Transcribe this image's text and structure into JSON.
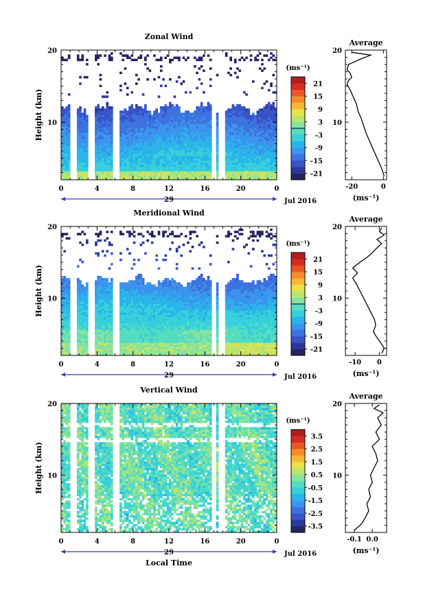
{
  "figure": {
    "xlabel": "Local Time",
    "day_label": "29",
    "month_label": "Jul 2016",
    "unit_label": "(ms⁻¹)",
    "average_title": "Average",
    "height_label": "Height (km)"
  },
  "chart_data": [
    {
      "type": "heatmap",
      "title": "Zonal Wind",
      "ylabel": "Height (km)",
      "xlabel": "",
      "x_ticks": [
        "0",
        "4",
        "8",
        "12",
        "16",
        "20",
        "0"
      ],
      "x_range": [
        0,
        24
      ],
      "y_ticks": [
        "20",
        "10"
      ],
      "y_range": [
        2,
        20
      ],
      "colorbar_ticks": [
        "21",
        "15",
        "9",
        "3",
        "-3",
        "-9",
        "-15",
        "-21"
      ],
      "colorbar_range": [
        -24,
        24
      ],
      "data_gaps_hours": [
        [
          1.0,
          1.6
        ],
        [
          3.2,
          3.7
        ],
        [
          5.8,
          6.3
        ],
        [
          16.8,
          17.2
        ],
        [
          17.7,
          18.1
        ]
      ],
      "data_top_km": 11.8,
      "profile": {
        "title": "Average",
        "x_ticks": [
          "-20",
          "0"
        ],
        "x_range": [
          -24,
          2
        ],
        "xlabel": "(ms⁻¹)",
        "y_ticks": [
          "20",
          "10"
        ],
        "points": [
          [
            0.5,
            2.5
          ],
          [
            -1,
            3.5
          ],
          [
            -3,
            4.5
          ],
          [
            -5,
            5.5
          ],
          [
            -7,
            6.5
          ],
          [
            -9,
            7.5
          ],
          [
            -11,
            8.5
          ],
          [
            -12.5,
            9.5
          ],
          [
            -14,
            10.5
          ],
          [
            -16,
            11.5
          ],
          [
            -17,
            12.5
          ],
          [
            -19,
            13.5
          ],
          [
            -21,
            14.5
          ],
          [
            -23,
            15.2
          ],
          [
            -22,
            15.8
          ],
          [
            -20,
            16.2
          ],
          [
            -21,
            16.8
          ],
          [
            -23,
            17.3
          ],
          [
            -22,
            18
          ],
          [
            -14,
            18.8
          ],
          [
            -8,
            19.3
          ],
          [
            -20,
            19.7
          ]
        ]
      }
    },
    {
      "type": "heatmap",
      "title": "Meridional Wind",
      "ylabel": "Height (km)",
      "xlabel": "",
      "x_ticks": [
        "0",
        "4",
        "8",
        "12",
        "16",
        "20",
        "0"
      ],
      "x_range": [
        0,
        24
      ],
      "y_ticks": [
        "20",
        "10"
      ],
      "y_range": [
        2,
        20
      ],
      "colorbar_ticks": [
        "21",
        "15",
        "9",
        "3",
        "-3",
        "-9",
        "-15",
        "-21"
      ],
      "colorbar_range": [
        -24,
        24
      ],
      "data_gaps_hours": [
        [
          1.0,
          1.6
        ],
        [
          3.2,
          3.7
        ],
        [
          5.8,
          6.3
        ],
        [
          16.8,
          17.2
        ],
        [
          17.7,
          18.1
        ]
      ],
      "data_top_km": 12.3,
      "profile": {
        "title": "Average",
        "x_ticks": [
          "-10",
          "0"
        ],
        "x_range": [
          -14,
          3
        ],
        "xlabel": "(ms⁻¹)",
        "y_ticks": [
          "20",
          "10"
        ],
        "points": [
          [
            1,
            2.3
          ],
          [
            2,
            3
          ],
          [
            0.5,
            3.8
          ],
          [
            -1,
            4.5
          ],
          [
            -2.5,
            5.3
          ],
          [
            -1.5,
            6.2
          ],
          [
            -2,
            7
          ],
          [
            -3.5,
            8
          ],
          [
            -5,
            9
          ],
          [
            -6.5,
            10
          ],
          [
            -8,
            11
          ],
          [
            -9.5,
            12
          ],
          [
            -11,
            12.8
          ],
          [
            -9,
            13.5
          ],
          [
            -11,
            14.2
          ],
          [
            -8,
            15
          ],
          [
            -5,
            15.7
          ],
          [
            -3,
            16.3
          ],
          [
            -1,
            17
          ],
          [
            1,
            17.6
          ],
          [
            -1,
            18.2
          ],
          [
            2,
            18.8
          ],
          [
            0,
            19.3
          ],
          [
            1,
            19.8
          ]
        ]
      }
    },
    {
      "type": "heatmap",
      "title": "Vertical Wind",
      "ylabel": "Height (km)",
      "xlabel": "Local Time",
      "x_ticks": [
        "0",
        "4",
        "8",
        "12",
        "16",
        "20",
        "0"
      ],
      "x_range": [
        0,
        24
      ],
      "y_ticks": [
        "20",
        "10"
      ],
      "y_range": [
        2,
        20
      ],
      "colorbar_ticks": [
        "3.5",
        "2.5",
        "1.5",
        "0.5",
        "-0.5",
        "-1.5",
        "-2.5",
        "-3.5"
      ],
      "colorbar_range": [
        -4,
        4
      ],
      "data_gaps_hours": [
        [
          1.0,
          1.6
        ],
        [
          3.2,
          3.7
        ],
        [
          5.8,
          6.3
        ],
        [
          16.8,
          17.2
        ],
        [
          17.7,
          18.1
        ]
      ],
      "data_top_km": 20,
      "profile": {
        "title": "Average",
        "x_ticks": [
          "-0.1",
          "0.0"
        ],
        "x_range": [
          -0.15,
          0.08
        ],
        "xlabel": "(ms⁻¹)",
        "y_ticks": [
          "20",
          "10"
        ],
        "points": [
          [
            -0.1,
            2.3
          ],
          [
            -0.06,
            3.2
          ],
          [
            -0.04,
            4
          ],
          [
            -0.02,
            5
          ],
          [
            -0.03,
            6
          ],
          [
            -0.01,
            7
          ],
          [
            -0.02,
            8
          ],
          [
            0,
            9
          ],
          [
            -0.01,
            10
          ],
          [
            0.01,
            11
          ],
          [
            0.03,
            12
          ],
          [
            0.02,
            13
          ],
          [
            0,
            14
          ],
          [
            0.04,
            15
          ],
          [
            0.02,
            16
          ],
          [
            0.05,
            17
          ],
          [
            0.03,
            18
          ],
          [
            0.06,
            18.7
          ],
          [
            0.01,
            19.3
          ],
          [
            0.04,
            19.8
          ]
        ]
      }
    }
  ]
}
